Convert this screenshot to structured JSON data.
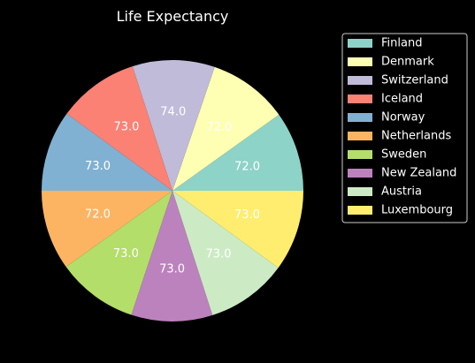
{
  "chart_data": {
    "type": "pie",
    "title": "Life Expectancy",
    "categories": [
      "Finland",
      "Denmark",
      "Switzerland",
      "Iceland",
      "Norway",
      "Netherlands",
      "Sweden",
      "New Zealand",
      "Austria",
      "Luxembourg"
    ],
    "values": [
      72.0,
      72.0,
      74.0,
      73.0,
      73.0,
      72.0,
      73.0,
      73.0,
      73.0,
      73.0
    ],
    "value_labels": [
      "72.0",
      "72.0",
      "74.0",
      "73.0",
      "73.0",
      "72.0",
      "73.0",
      "73.0",
      "73.0",
      "73.0"
    ],
    "colors": [
      "#8dd3c7",
      "#feffb3",
      "#bfbbd9",
      "#fa8174",
      "#81b1d2",
      "#fdb462",
      "#b3de69",
      "#bc82bd",
      "#ccebc4",
      "#ffed6f"
    ],
    "start_angle_deg": 0,
    "direction": "counterclockwise",
    "legend_position": "upper-right-outside"
  }
}
